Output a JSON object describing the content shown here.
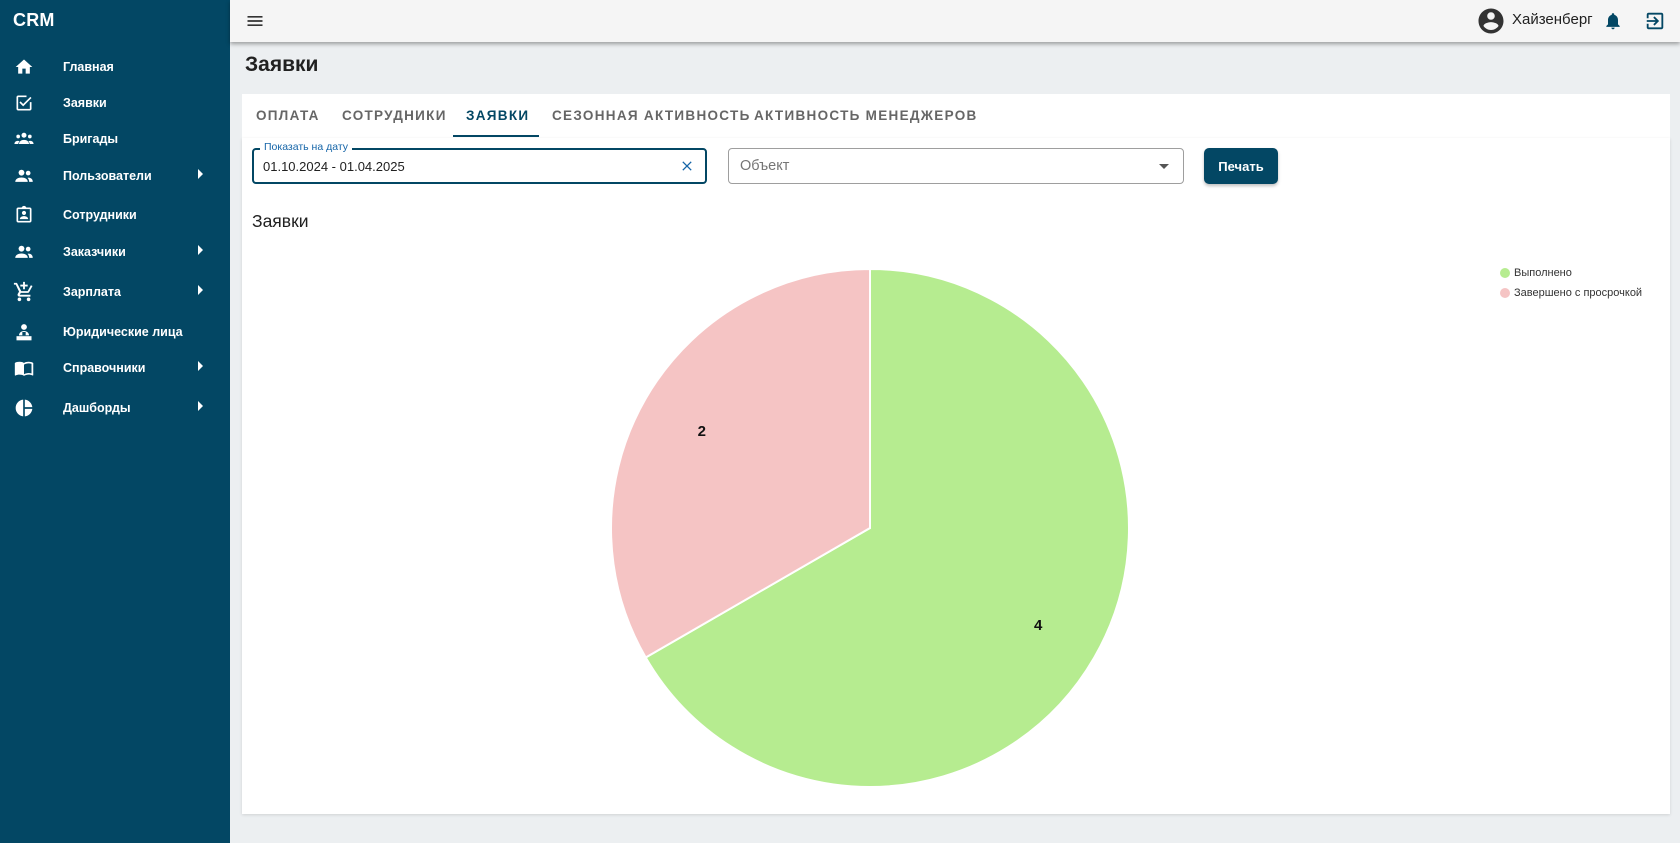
{
  "app": {
    "brand": "CRM"
  },
  "sidebar": {
    "items": [
      {
        "label": "Главная",
        "icon": "home-icon",
        "has_submenu": false
      },
      {
        "label": "Заявки",
        "icon": "checkbox-icon",
        "has_submenu": false
      },
      {
        "label": "Бригады",
        "icon": "group-icon",
        "has_submenu": false
      },
      {
        "label": "Пользователи",
        "icon": "people-icon",
        "has_submenu": true
      },
      {
        "label": "Сотрудники",
        "icon": "clipboard-icon",
        "has_submenu": false
      },
      {
        "label": "Заказчики",
        "icon": "people-icon",
        "has_submenu": true
      },
      {
        "label": "Зарплата",
        "icon": "cart-icon",
        "has_submenu": true
      },
      {
        "label": "Юридические лица",
        "icon": "person-desk-icon",
        "has_submenu": false
      },
      {
        "label": "Справочники",
        "icon": "book-icon",
        "has_submenu": true
      },
      {
        "label": "Дашборды",
        "icon": "pie-icon",
        "has_submenu": true
      }
    ]
  },
  "topbar": {
    "user_name": "Хайзенберг"
  },
  "page": {
    "title": "Заявки"
  },
  "tabs": [
    {
      "label": "Оплата",
      "active": false
    },
    {
      "label": "Сотрудники",
      "active": false
    },
    {
      "label": "Заявки",
      "active": true
    },
    {
      "label": "Сезонная активность",
      "active": false
    },
    {
      "label": "Активность менеджеров",
      "active": false
    }
  ],
  "filters": {
    "date_label": "Показать на дату",
    "date_value": "01.10.2024 - 01.04.2025",
    "object_placeholder": "Объект",
    "print_label": "Печать"
  },
  "chart_title": "Заявки",
  "colors": {
    "sidebar": "#034764",
    "done": "#b6ec90",
    "late": "#f5c4c4"
  },
  "chart_data": {
    "type": "pie",
    "title": "Заявки",
    "legend_position": "top-right",
    "series": [
      {
        "name": "Выполнено",
        "value": 4,
        "color": "#b6ec90"
      },
      {
        "name": "Завершено с просрочкой",
        "value": 2,
        "color": "#f5c4c4"
      }
    ]
  }
}
